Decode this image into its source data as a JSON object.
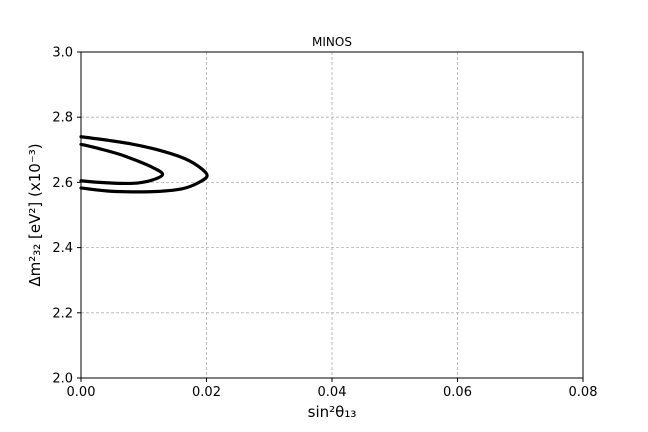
{
  "chart_data": {
    "type": "line",
    "title": "MINOS",
    "xlabel": "sin²θ₁₃",
    "ylabel": "Δm²₃₂ [eV²] (x10⁻³)",
    "xlim": [
      0.0,
      0.08
    ],
    "ylim": [
      2.0,
      3.0
    ],
    "x_ticks": [
      0.0,
      0.02,
      0.04,
      0.06,
      0.08
    ],
    "x_tick_labels": [
      "0.00",
      "0.02",
      "0.04",
      "0.06",
      "0.08"
    ],
    "y_ticks": [
      2.0,
      2.2,
      2.4,
      2.6,
      2.8,
      3.0
    ],
    "y_tick_labels": [
      "2.0",
      "2.2",
      "2.4",
      "2.6",
      "2.8",
      "3.0"
    ],
    "grid": true,
    "legend": "none",
    "series": [
      {
        "x": [
          0.0,
          0.003,
          0.006,
          0.009,
          0.0115,
          0.013,
          0.0115,
          0.009,
          0.006,
          0.003,
          0.0
        ],
        "y": [
          2.717,
          2.703,
          2.687,
          2.666,
          2.645,
          2.625,
          2.608,
          2.598,
          2.597,
          2.6,
          2.605
        ]
      },
      {
        "x": [
          0.0,
          0.004,
          0.008,
          0.012,
          0.016,
          0.0185,
          0.0201,
          0.0185,
          0.016,
          0.012,
          0.008,
          0.004,
          0.0
        ],
        "y": [
          2.74,
          2.73,
          2.718,
          2.701,
          2.677,
          2.652,
          2.621,
          2.597,
          2.58,
          2.572,
          2.571,
          2.574,
          2.583
        ]
      }
    ],
    "color": "#000000"
  }
}
